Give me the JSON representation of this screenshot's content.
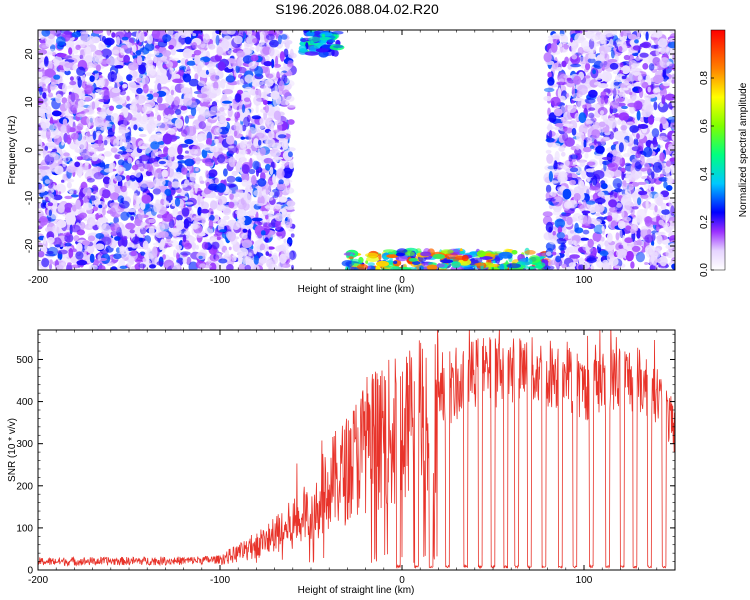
{
  "title": "S196.2026.088.04.02.R20",
  "chart_data": [
    {
      "type": "heatmap",
      "xlabel": "Height of straight line (km)",
      "ylabel": "Frequency (Hz)",
      "xlim": [
        -200,
        150
      ],
      "ylim": [
        -25,
        25
      ],
      "xticks": [
        -200,
        -100,
        0,
        100
      ],
      "xtick_labels": [
        "-200",
        "-100",
        "0",
        "100"
      ],
      "yticks": [
        -20,
        -10,
        0,
        10,
        20
      ],
      "ytick_labels": [
        "-20",
        "-10",
        "0",
        "10",
        "20"
      ],
      "colorbar": {
        "label": "Normalized spectral amplitude",
        "range": [
          0,
          1
        ],
        "ticks": [
          0.0,
          0.2,
          0.4,
          0.6,
          0.8
        ],
        "tick_labels": [
          "0.0",
          "0.2",
          "0.4",
          "0.6",
          "0.8"
        ],
        "colormap": "rainbow"
      },
      "regions": [
        {
          "x": [
            -200,
            -60
          ],
          "y": [
            -25,
            25
          ],
          "amplitude": [
            0.05,
            0.3
          ]
        },
        {
          "x": [
            -60,
            80
          ],
          "y": [
            -25,
            25
          ],
          "amplitude": [
            0.0,
            0.0
          ]
        },
        {
          "x": [
            -55,
            -35
          ],
          "y": [
            20,
            25
          ],
          "amplitude": [
            0.2,
            0.5
          ]
        },
        {
          "x": [
            -30,
            80
          ],
          "y": [
            -25,
            -21
          ],
          "amplitude": [
            0.15,
            0.95
          ]
        },
        {
          "x": [
            80,
            150
          ],
          "y": [
            -25,
            25
          ],
          "amplitude": [
            0.05,
            0.3
          ]
        }
      ],
      "grid": false
    },
    {
      "type": "line",
      "xlabel": "Height of straight line (km)",
      "ylabel": "SNR (10 * v/v)",
      "xlim": [
        -200,
        150
      ],
      "ylim": [
        0,
        570
      ],
      "xticks": [
        -200,
        -100,
        0,
        100
      ],
      "xtick_labels": [
        "-200",
        "-100",
        "0",
        "100"
      ],
      "yticks": [
        0,
        100,
        200,
        300,
        400,
        500
      ],
      "ytick_labels": [
        "0",
        "100",
        "200",
        "300",
        "400",
        "500"
      ],
      "line_color": "#e8332a",
      "envelope": {
        "x": [
          -200,
          -120,
          -100,
          -90,
          -80,
          -70,
          -60,
          -50,
          -40,
          -30,
          -20,
          -10,
          0,
          10,
          20,
          30,
          40,
          50,
          60,
          70,
          80,
          90,
          100,
          110,
          120,
          130,
          140,
          150
        ],
        "y": [
          20,
          22,
          25,
          40,
          60,
          80,
          110,
          140,
          200,
          240,
          300,
          320,
          330,
          370,
          400,
          430,
          470,
          470,
          470,
          470,
          470,
          460,
          430,
          440,
          460,
          450,
          420,
          330
        ]
      },
      "dropouts_x": [
        -2,
        8,
        16,
        25,
        35,
        43,
        50,
        57,
        63,
        70,
        78,
        87,
        95,
        104,
        113,
        121,
        128,
        136,
        144
      ],
      "dropout_y": 5,
      "grid": false
    }
  ]
}
